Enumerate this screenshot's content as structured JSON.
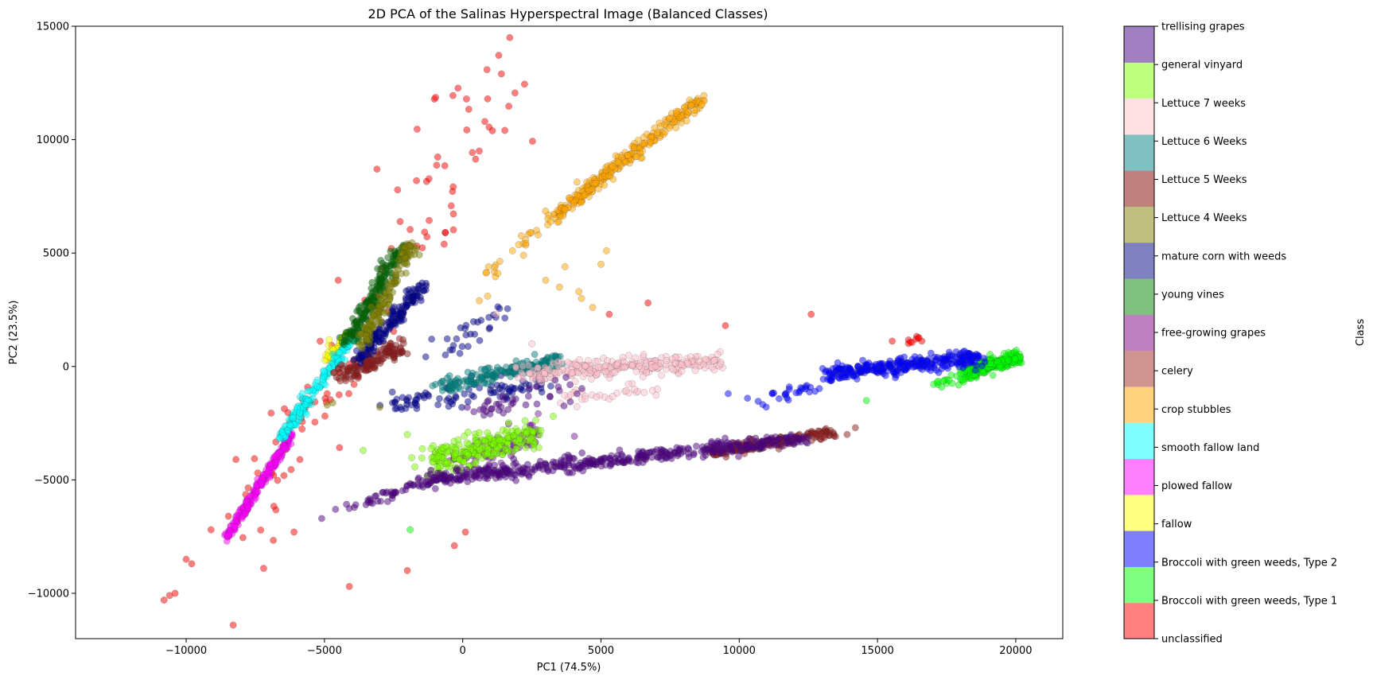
{
  "chart_data": {
    "type": "scatter",
    "title": "2D PCA of the Salinas Hyperspectral Image (Balanced Classes)",
    "xlabel": "PC1 (74.5%)",
    "ylabel": "PC2 (23.5%)",
    "xlim": [
      -14000,
      21700
    ],
    "ylim": [
      -12000,
      15000
    ],
    "xticks": [
      -10000,
      -5000,
      0,
      5000,
      10000,
      15000,
      20000
    ],
    "yticks": [
      -10000,
      -5000,
      0,
      5000,
      10000,
      15000
    ],
    "colorbar_label": "Class",
    "legend_placement": "right colorbar",
    "classes": [
      {
        "name": "unclassified",
        "color": "#ff8080"
      },
      {
        "name": "Broccoli with green weeds, Type 1",
        "color": "#80ff80"
      },
      {
        "name": "Broccoli with green weeds, Type 2",
        "color": "#8080ff"
      },
      {
        "name": "fallow",
        "color": "#ffff80"
      },
      {
        "name": "plowed fallow",
        "color": "#ff80ff"
      },
      {
        "name": "smooth fallow land",
        "color": "#80ffff"
      },
      {
        "name": "crop stubbles",
        "color": "#ffd280"
      },
      {
        "name": "celery",
        "color": "#d09490"
      },
      {
        "name": "free-growing grapes",
        "color": "#bf80bf"
      },
      {
        "name": "young vines",
        "color": "#80c080"
      },
      {
        "name": "mature corn with weeds",
        "color": "#8080c0"
      },
      {
        "name": "Lettuce 4 Weeks",
        "color": "#c0c080"
      },
      {
        "name": "Lettuce 5 Weeks",
        "color": "#c08080"
      },
      {
        "name": "Lettuce 6 Weeks",
        "color": "#80c0c0"
      },
      {
        "name": "Lettuce 7 weeks",
        "color": "#ffe0e5"
      },
      {
        "name": "general vinyard",
        "color": "#c0ff80"
      },
      {
        "name": "trellising grapes",
        "color": "#a080c0"
      }
    ],
    "series": [
      {
        "class": "unclassified",
        "color": "#ff0000",
        "clusters": [
          {
            "from": [
              -8400,
              -7300
            ],
            "to": [
              -3000,
              2500
            ],
            "n": 70,
            "spread": 1200
          },
          {
            "from": [
              -2500,
              4000
            ],
            "to": [
              1500,
              12800
            ],
            "n": 45,
            "spread": 1500
          },
          {
            "from": [
              15500,
              1100
            ],
            "to": [
              16600,
              1200
            ],
            "n": 10,
            "spread": 150
          }
        ],
        "points": [
          [
            -10800,
            -10300
          ],
          [
            -10600,
            -10100
          ],
          [
            -10400,
            -10000
          ],
          [
            -10000,
            -8500
          ],
          [
            -9800,
            -8700
          ],
          [
            -8300,
            -11400
          ],
          [
            -9100,
            -7200
          ],
          [
            -7200,
            -8900
          ],
          [
            -4100,
            -9700
          ],
          [
            -2000,
            -9000
          ],
          [
            100,
            -7300
          ],
          [
            -300,
            -7900
          ],
          [
            1700,
            14500
          ],
          [
            1400,
            12900
          ],
          [
            800,
            10800
          ],
          [
            900,
            11800
          ],
          [
            600,
            9500
          ],
          [
            9500,
            1800
          ],
          [
            12600,
            2300
          ],
          [
            6700,
            2800
          ],
          [
            -4500,
            3800
          ],
          [
            -3100,
            8700
          ],
          [
            -8200,
            -4100
          ],
          [
            -6100,
            -7300
          ],
          [
            5300,
            2300
          ]
        ]
      },
      {
        "class": "Broccoli with green weeds, Type 1",
        "color": "#00ff00",
        "clusters": [
          {
            "from": [
              18200,
              -300
            ],
            "to": [
              20100,
              400
            ],
            "n": 260,
            "spread": 220
          },
          {
            "from": [
              17000,
              -800
            ],
            "to": [
              18300,
              -400
            ],
            "n": 20,
            "spread": 200
          }
        ],
        "points": [
          [
            14600,
            -1500
          ],
          [
            -1900,
            -7200
          ]
        ]
      },
      {
        "class": "Broccoli with green weeds, Type 2",
        "color": "#0000ff",
        "clusters": [
          {
            "from": [
              13300,
              -300
            ],
            "to": [
              18600,
              400
            ],
            "n": 300,
            "spread": 300
          },
          {
            "from": [
              10700,
              -1700
            ],
            "to": [
              13800,
              -300
            ],
            "n": 40,
            "spread": 260
          }
        ],
        "points": [
          [
            9600,
            -1200
          ],
          [
            10300,
            -1400
          ],
          [
            11200,
            -1200
          ]
        ]
      },
      {
        "class": "fallow",
        "color": "#ffff00",
        "clusters": [
          {
            "from": [
              -4900,
              300
            ],
            "to": [
              -4200,
              1500
            ],
            "n": 40,
            "spread": 220
          }
        ],
        "points": []
      },
      {
        "class": "plowed fallow",
        "color": "#ff00ff",
        "clusters": [
          {
            "from": [
              -8500,
              -7500
            ],
            "to": [
              -6200,
              -3000
            ],
            "n": 230,
            "spread": 120
          }
        ],
        "points": []
      },
      {
        "class": "smooth fallow land",
        "color": "#00ffff",
        "clusters": [
          {
            "from": [
              -6600,
              -3200
            ],
            "to": [
              -3800,
              1600
            ],
            "n": 200,
            "spread": 160
          }
        ],
        "points": []
      },
      {
        "class": "crop stubbles",
        "color": "#ffa500",
        "clusters": [
          {
            "from": [
              3300,
              6600
            ],
            "to": [
              8700,
              11900
            ],
            "n": 280,
            "spread": 220
          },
          {
            "from": [
              700,
              3800
            ],
            "to": [
              3300,
              6600
            ],
            "n": 25,
            "spread": 250
          }
        ],
        "points": [
          [
            3000,
            3800
          ],
          [
            3500,
            3500
          ],
          [
            4200,
            3300
          ],
          [
            4300,
            3000
          ],
          [
            4700,
            2600
          ],
          [
            3700,
            4400
          ],
          [
            2200,
            4900
          ],
          [
            1800,
            5100
          ],
          [
            900,
            3100
          ],
          [
            5200,
            5100
          ],
          [
            5000,
            4500
          ],
          [
            600,
            2900
          ]
        ]
      },
      {
        "class": "celery",
        "color": "#8b1a1a",
        "clusters": [
          {
            "from": [
              9000,
              -3800
            ],
            "to": [
              13400,
              -2900
            ],
            "n": 160,
            "spread": 200
          },
          {
            "from": [
              -4400,
              -500
            ],
            "to": [
              -2300,
              900
            ],
            "n": 140,
            "spread": 320
          }
        ],
        "points": [
          [
            14200,
            -2700
          ],
          [
            13900,
            -3000
          ]
        ]
      },
      {
        "class": "free-growing grapes",
        "color": "#7a1f9c",
        "clusters": [
          {
            "from": [
              -500,
              -4500
            ],
            "to": [
              3000,
              -2800
            ],
            "n": 80,
            "spread": 600
          }
        ],
        "points": []
      },
      {
        "class": "young vines",
        "color": "#006400",
        "clusters": [
          {
            "from": [
              -4200,
              1000
            ],
            "to": [
              -2200,
              5300
            ],
            "n": 180,
            "spread": 220
          }
        ],
        "points": []
      },
      {
        "class": "mature corn with weeds",
        "color": "#00008b",
        "clusters": [
          {
            "from": [
              -3800,
              300
            ],
            "to": [
              -1400,
              3600
            ],
            "n": 170,
            "spread": 220
          },
          {
            "from": [
              -2700,
              -1700
            ],
            "to": [
              3200,
              -700
            ],
            "n": 90,
            "spread": 380
          },
          {
            "from": [
              -1000,
              500
            ],
            "to": [
              1500,
              2500
            ],
            "n": 30,
            "spread": 500
          }
        ],
        "points": []
      },
      {
        "class": "Lettuce 4 Weeks",
        "color": "#808000",
        "clusters": [
          {
            "from": [
              -3700,
              900
            ],
            "to": [
              -1800,
              5400
            ],
            "n": 150,
            "spread": 200
          }
        ],
        "points": [
          [
            -4900,
            -1700
          ],
          [
            -3000,
            -1800
          ],
          [
            -4700,
            -1600
          ]
        ]
      },
      {
        "class": "Lettuce 5 Weeks",
        "color": "#800000",
        "clusters": [],
        "points": []
      },
      {
        "class": "Lettuce 6 Weeks",
        "color": "#008080",
        "clusters": [
          {
            "from": [
              -700,
              -900
            ],
            "to": [
              3500,
              300
            ],
            "n": 180,
            "spread": 260
          }
        ],
        "points": []
      },
      {
        "class": "Lettuce 7 weeks",
        "color": "#ffc0cb",
        "clusters": [
          {
            "from": [
              1800,
              -300
            ],
            "to": [
              9300,
              200
            ],
            "n": 260,
            "spread": 320
          },
          {
            "from": [
              3500,
              -1500
            ],
            "to": [
              7500,
              -800
            ],
            "n": 30,
            "spread": 300
          }
        ],
        "points": [
          [
            1200,
            2300
          ],
          [
            2500,
            1000
          ]
        ]
      },
      {
        "class": "general vinyard",
        "color": "#7cfc00",
        "clusters": [
          {
            "from": [
              -1200,
              -4300
            ],
            "to": [
              2800,
              -2800
            ],
            "n": 260,
            "spread": 500
          }
        ],
        "points": [
          [
            -3600,
            -3700
          ],
          [
            -2000,
            -3000
          ],
          [
            1600,
            -2800
          ]
        ]
      },
      {
        "class": "trellising grapes",
        "color": "#4b0082",
        "clusters": [
          {
            "from": [
              -1300,
              -5000
            ],
            "to": [
              12500,
              -3200
            ],
            "n": 430,
            "spread": 280
          },
          {
            "from": [
              -4200,
              -6200
            ],
            "to": [
              -500,
              -4800
            ],
            "n": 60,
            "spread": 260
          },
          {
            "from": [
              500,
              -2000
            ],
            "to": [
              4000,
              -1000
            ],
            "n": 40,
            "spread": 380
          }
        ],
        "points": [
          [
            -5100,
            -6700
          ],
          [
            -4600,
            -6300
          ]
        ]
      }
    ]
  }
}
